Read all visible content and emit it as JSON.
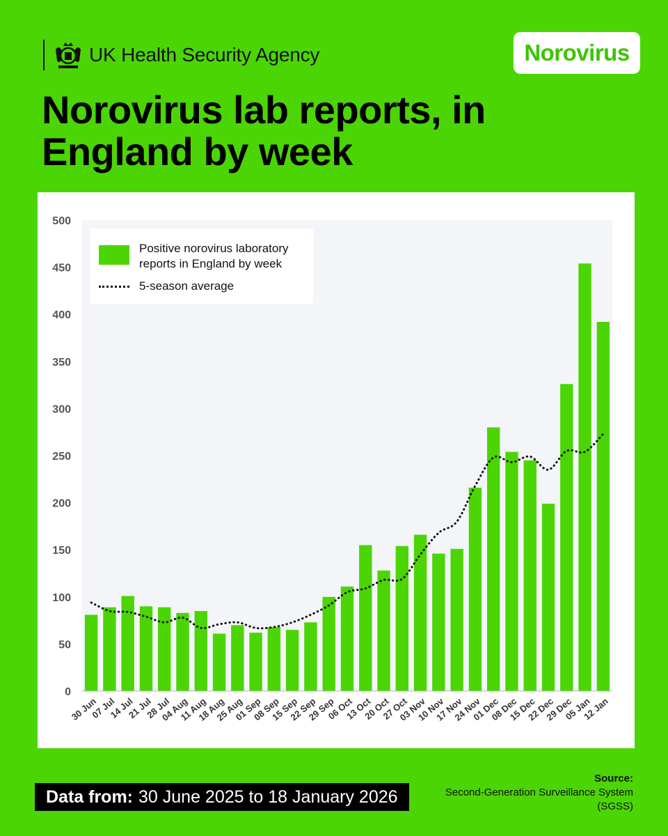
{
  "header": {
    "agency_name": "UK Health Security Agency",
    "badge": "Norovirus",
    "title": "Norovirus lab reports, in England by week"
  },
  "legend": {
    "bars_label": "Positive norovirus laboratory reports in England by week",
    "line_label": "5-season average"
  },
  "footer": {
    "data_from_label": "Data from:",
    "data_from_value": "30 June 2025 to 18 January 2026",
    "source_label": "Source:",
    "source_value": "Second-Generation Surveillance System (SGSS)"
  },
  "colors": {
    "background": "#4cd505",
    "bar": "#4cd505",
    "plot_area": "#f3f5f8",
    "text": "#111111"
  },
  "chart_data": {
    "type": "bar",
    "title": "Norovirus lab reports, in England by week",
    "xlabel": "",
    "ylabel": "",
    "ylim": [
      0,
      500
    ],
    "yticks": [
      0,
      50,
      100,
      150,
      200,
      250,
      300,
      350,
      400,
      450,
      500
    ],
    "grid": false,
    "legend_position": "top-left",
    "categories": [
      "30 Jun",
      "07 Jul",
      "14 Jul",
      "21 Jul",
      "28 Jul",
      "04 Aug",
      "11 Aug",
      "18 Aug",
      "25 Aug",
      "01 Sep",
      "08 Sep",
      "15 Sep",
      "22 Sep",
      "29 Sep",
      "06 Oct",
      "13 Oct",
      "20 Oct",
      "27 Oct",
      "03 Nov",
      "10 Nov",
      "17 Nov",
      "24 Nov",
      "01 Dec",
      "08 Dec",
      "15 Dec",
      "22 Dec",
      "29 Dec",
      "05 Jan",
      "12 Jan"
    ],
    "series": [
      {
        "name": "Positive norovirus laboratory reports in England by week",
        "type": "bar",
        "values": [
          81,
          89,
          101,
          90,
          89,
          83,
          85,
          61,
          70,
          62,
          68,
          65,
          73,
          100,
          111,
          155,
          128,
          154,
          166,
          146,
          151,
          216,
          280,
          254,
          245,
          199,
          326,
          454,
          392
        ]
      },
      {
        "name": "5-season average",
        "type": "line",
        "style": "dotted",
        "values": [
          94,
          85,
          84,
          79,
          73,
          78,
          67,
          71,
          73,
          67,
          68,
          73,
          81,
          91,
          105,
          109,
          118,
          119,
          145,
          168,
          180,
          218,
          248,
          243,
          249,
          235,
          255,
          254,
          273
        ]
      }
    ]
  }
}
